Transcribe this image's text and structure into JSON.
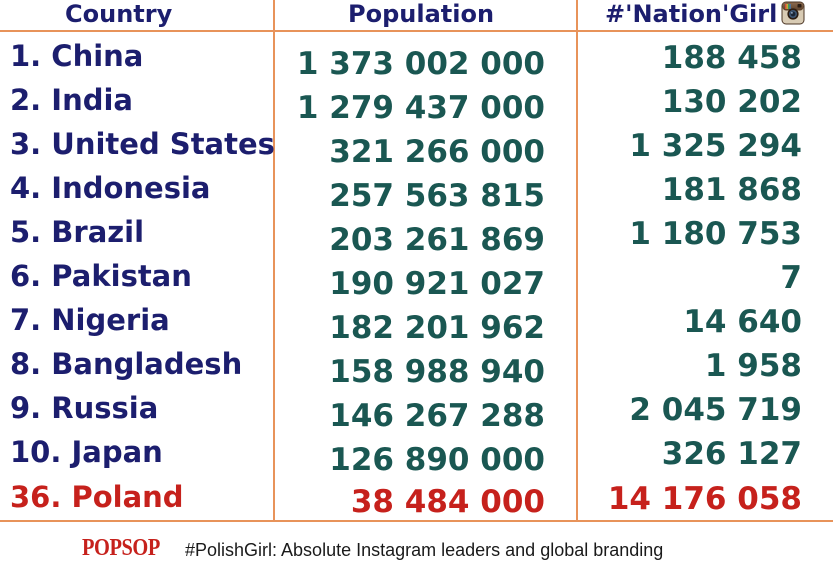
{
  "chart_data": {
    "type": "table",
    "columns": [
      "Country",
      "Population",
      "#'Nation'Girl"
    ],
    "rows": [
      {
        "country": "1. China",
        "population": "1 373 002 000",
        "tag": "188 458",
        "highlight": false
      },
      {
        "country": "2. India",
        "population": "1 279 437 000",
        "tag": "130 202",
        "highlight": false
      },
      {
        "country": "3. United States",
        "population": "321 266 000",
        "tag": "1 325 294",
        "highlight": false
      },
      {
        "country": "4. Indonesia",
        "population": "257 563 815",
        "tag": "181 868",
        "highlight": false
      },
      {
        "country": "5. Brazil",
        "population": "203 261 869",
        "tag": "1 180 753",
        "highlight": false
      },
      {
        "country": "6. Pakistan",
        "population": "190 921 027",
        "tag": "7",
        "highlight": false
      },
      {
        "country": "7. Nigeria",
        "population": "182 201 962",
        "tag": "14 640",
        "highlight": false
      },
      {
        "country": "8. Bangladesh",
        "population": "158 988 940",
        "tag": "1 958",
        "highlight": false
      },
      {
        "country": "9. Russia",
        "population": "146 267 288",
        "tag": "2 045 719",
        "highlight": false
      },
      {
        "country": "10. Japan",
        "population": "126 890 000",
        "tag": "326 127",
        "highlight": false
      },
      {
        "country": "36. Poland",
        "population": "38 484 000",
        "tag": "14 176 058",
        "highlight": true
      }
    ],
    "header_icon": "instagram-icon"
  },
  "footer": {
    "brand": "POPSOP",
    "caption": "#PolishGirl: Absolute Instagram leaders and global branding"
  },
  "colors": {
    "header_text": "#1c1e6e",
    "number_text": "#1a5752",
    "highlight_text": "#c6211c",
    "grid_lines": "#e8935a",
    "brand": "#c6211c"
  }
}
